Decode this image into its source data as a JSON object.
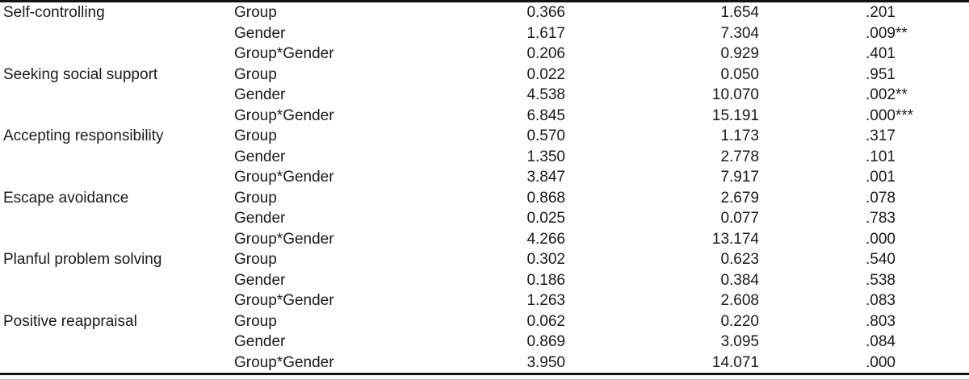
{
  "colors": {
    "background": "#ffffff",
    "text": "#1b1b1b",
    "rule": "#121212",
    "bottom_edge": "#b9b9b9"
  },
  "table": {
    "rows": [
      {
        "strategy": "Self-controlling",
        "source": "Group",
        "col3": "0.366",
        "col4": "1.654",
        "col5": ".201"
      },
      {
        "strategy": "",
        "source": "Gender",
        "col3": "1.617",
        "col4": "7.304",
        "col5": ".009**"
      },
      {
        "strategy": "",
        "source": "Group*Gender",
        "col3": "0.206",
        "col4": "0.929",
        "col5": ".401"
      },
      {
        "strategy": "Seeking social support",
        "source": "Group",
        "col3": "0.022",
        "col4": "0.050",
        "col5": ".951"
      },
      {
        "strategy": "",
        "source": "Gender",
        "col3": "4.538",
        "col4": "10.070",
        "col5": ".002**"
      },
      {
        "strategy": "",
        "source": "Group*Gender",
        "col3": "6.845",
        "col4": "15.191",
        "col5": ".000***"
      },
      {
        "strategy": "Accepting responsibility",
        "source": "Group",
        "col3": "0.570",
        "col4": "1.173",
        "col5": ".317"
      },
      {
        "strategy": "",
        "source": "Gender",
        "col3": "1.350",
        "col4": "2.778",
        "col5": ".101"
      },
      {
        "strategy": "",
        "source": "Group*Gender",
        "col3": "3.847",
        "col4": "7.917",
        "col5": ".001"
      },
      {
        "strategy": "Escape avoidance",
        "source": "Group",
        "col3": "0.868",
        "col4": "2.679",
        "col5": ".078"
      },
      {
        "strategy": "",
        "source": "Gender",
        "col3": "0.025",
        "col4": "0.077",
        "col5": ".783"
      },
      {
        "strategy": "",
        "source": "Group*Gender",
        "col3": "4.266",
        "col4": "13.174",
        "col5": ".000"
      },
      {
        "strategy": "Planful problem solving",
        "source": "Group",
        "col3": "0.302",
        "col4": "0.623",
        "col5": ".540"
      },
      {
        "strategy": "",
        "source": "Gender",
        "col3": "0.186",
        "col4": "0.384",
        "col5": ".538"
      },
      {
        "strategy": "",
        "source": "Group*Gender",
        "col3": "1.263",
        "col4": "2.608",
        "col5": ".083"
      },
      {
        "strategy": "Positive reappraisal",
        "source": "Group",
        "col3": "0.062",
        "col4": "0.220",
        "col5": ".803"
      },
      {
        "strategy": "",
        "source": "Gender",
        "col3": "0.869",
        "col4": "3.095",
        "col5": ".084"
      },
      {
        "strategy": "",
        "source": "Group*Gender",
        "col3": "3.950",
        "col4": "14.071",
        "col5": ".000"
      }
    ]
  }
}
